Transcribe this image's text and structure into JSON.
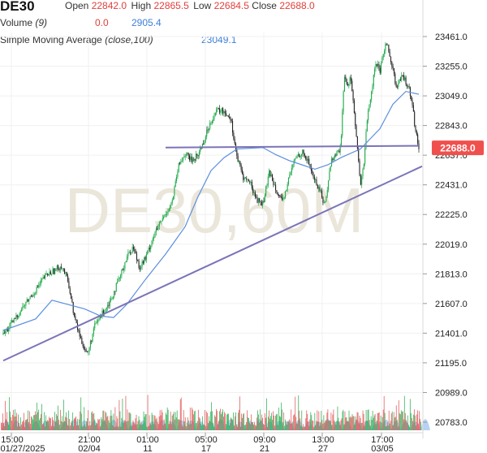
{
  "header": {
    "symbol": "DE30",
    "open_label": "Open",
    "open_value": "22842.0",
    "high_label": "High",
    "high_value": "22865.5",
    "low_label": "Low",
    "low_value": "22684.5",
    "close_label": "Close",
    "close_value": "22688.0",
    "volume_label": "Volume",
    "volume_param": "(9)",
    "volume_value1": "0.0",
    "volume_value2": "2905.4",
    "sma_label": "Simple Moving Average",
    "sma_param": "(close,100)",
    "sma_value": "23049.1"
  },
  "watermark": "DE30,60M",
  "current_price_label": "22688.0",
  "colors": {
    "up": "#1faa4a",
    "down": "#222222",
    "volume_red": "#e04a4a",
    "sma": "#5b8fe0",
    "trendline": "#7a74b8",
    "price_badge": "#f0504d",
    "volume_wave": "#9fc3ee",
    "watermark": "#ebe6da"
  },
  "chart_data": {
    "type": "candlestick",
    "y_ticks": [
      "23461.0",
      "23255.0",
      "23049.0",
      "22843.0",
      "22637.0",
      "22431.0",
      "22225.0",
      "22019.0",
      "21813.0",
      "21607.0",
      "21401.0",
      "21195.0",
      "20989.0",
      "20783.0"
    ],
    "ylim": [
      20783,
      23461
    ],
    "x_ticks": [
      {
        "time": "15:00",
        "date": "01/27/2025"
      },
      {
        "time": "21:00",
        "date": "02/04"
      },
      {
        "time": "01:00",
        "date": "11"
      },
      {
        "time": "05:00",
        "date": "17"
      },
      {
        "time": "09:00",
        "date": "21"
      },
      {
        "time": "13:00",
        "date": "27"
      },
      {
        "time": "17:00",
        "date": "03/05"
      }
    ],
    "price_path": [
      [
        0,
        21390
      ],
      [
        3,
        21480
      ],
      [
        6,
        21580
      ],
      [
        10,
        21700
      ],
      [
        13,
        21800
      ],
      [
        16,
        21840
      ],
      [
        18,
        21870
      ],
      [
        20,
        21760
      ],
      [
        22,
        21500
      ],
      [
        24,
        21350
      ],
      [
        26,
        21250
      ],
      [
        28,
        21440
      ],
      [
        30,
        21520
      ],
      [
        33,
        21630
      ],
      [
        36,
        21790
      ],
      [
        38,
        21930
      ],
      [
        40,
        22000
      ],
      [
        42,
        21860
      ],
      [
        44,
        21930
      ],
      [
        46,
        22060
      ],
      [
        48,
        22150
      ],
      [
        50,
        22230
      ],
      [
        52,
        22310
      ],
      [
        54,
        22560
      ],
      [
        56,
        22650
      ],
      [
        58,
        22600
      ],
      [
        60,
        22640
      ],
      [
        62,
        22750
      ],
      [
        64,
        22880
      ],
      [
        66,
        22950
      ],
      [
        68,
        22940
      ],
      [
        70,
        22900
      ],
      [
        72,
        22620
      ],
      [
        74,
        22480
      ],
      [
        76,
        22450
      ],
      [
        78,
        22330
      ],
      [
        80,
        22300
      ],
      [
        82,
        22520
      ],
      [
        84,
        22410
      ],
      [
        86,
        22300
      ],
      [
        88,
        22480
      ],
      [
        90,
        22620
      ],
      [
        92,
        22660
      ],
      [
        94,
        22590
      ],
      [
        96,
        22460
      ],
      [
        98,
        22370
      ],
      [
        99,
        22280
      ],
      [
        101,
        22600
      ],
      [
        103,
        22660
      ],
      [
        104,
        22700
      ],
      [
        105,
        23200
      ],
      [
        106,
        23100
      ],
      [
        107,
        23200
      ],
      [
        108,
        22950
      ],
      [
        109,
        22700
      ],
      [
        110,
        22420
      ],
      [
        111,
        22560
      ],
      [
        112,
        22880
      ],
      [
        113,
        23000
      ],
      [
        114,
        23170
      ],
      [
        115,
        23280
      ],
      [
        116,
        23200
      ],
      [
        117,
        23340
      ],
      [
        118,
        23430
      ],
      [
        119,
        23320
      ],
      [
        120,
        23250
      ],
      [
        121,
        23100
      ],
      [
        122,
        23150
      ],
      [
        123,
        23180
      ],
      [
        124,
        23150
      ],
      [
        125,
        23100
      ],
      [
        126,
        23000
      ],
      [
        127,
        22800
      ],
      [
        128,
        22688
      ]
    ],
    "sma_path": [
      [
        0,
        21420
      ],
      [
        10,
        21500
      ],
      [
        15,
        21630
      ],
      [
        25,
        21570
      ],
      [
        30,
        21520
      ],
      [
        34,
        21510
      ],
      [
        38,
        21600
      ],
      [
        44,
        21780
      ],
      [
        50,
        21950
      ],
      [
        56,
        22140
      ],
      [
        60,
        22350
      ],
      [
        64,
        22530
      ],
      [
        68,
        22620
      ],
      [
        72,
        22680
      ],
      [
        80,
        22690
      ],
      [
        84,
        22640
      ],
      [
        88,
        22600
      ],
      [
        92,
        22570
      ],
      [
        96,
        22540
      ],
      [
        100,
        22570
      ],
      [
        104,
        22620
      ],
      [
        110,
        22680
      ],
      [
        116,
        22820
      ],
      [
        120,
        22990
      ],
      [
        124,
        23080
      ],
      [
        128,
        23060
      ]
    ],
    "trendlines": [
      {
        "from": [
          0,
          21210
        ],
        "to": [
          129,
          22560
        ]
      },
      {
        "from": [
          50,
          22690
        ],
        "to": [
          128,
          22702
        ]
      }
    ],
    "current_price": 22688.0
  }
}
